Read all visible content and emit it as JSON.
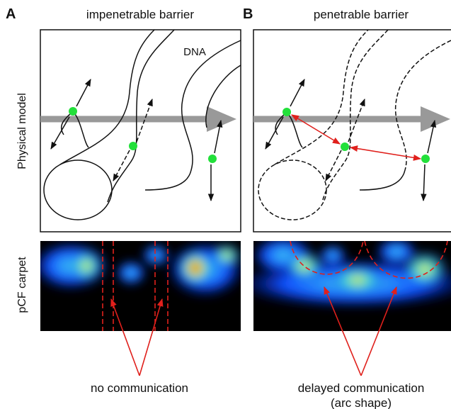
{
  "panels": [
    {
      "label": "A",
      "title": "impenetrable barrier",
      "caption": [
        "no communication"
      ]
    },
    {
      "label": "B",
      "title": "penetrable barrier",
      "caption": [
        "delayed communication",
        "(arc shape)"
      ]
    }
  ],
  "dna_label": "DNA",
  "row_labels": [
    "Physical model",
    "pCF carpet"
  ]
}
